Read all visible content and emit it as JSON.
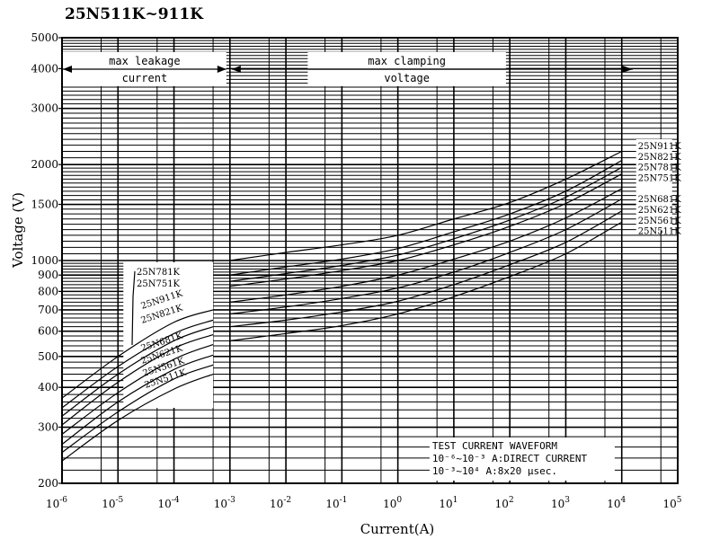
{
  "chart_data": {
    "type": "line",
    "title": "25N511K~911K",
    "xlabel": "Current(A)",
    "ylabel": "Voltage (V)",
    "x_scale": "log",
    "y_scale": "log",
    "xlim": [
      1e-06,
      100000.0
    ],
    "ylim": [
      200,
      5000
    ],
    "x_ticks": [
      {
        "base": "10",
        "exp": "-6"
      },
      {
        "base": "10",
        "exp": "-5"
      },
      {
        "base": "10",
        "exp": "-4"
      },
      {
        "base": "10",
        "exp": "-3"
      },
      {
        "base": "10",
        "exp": "-2"
      },
      {
        "base": "10",
        "exp": "-1"
      },
      {
        "base": "10",
        "exp": "0"
      },
      {
        "base": "10",
        "exp": "1"
      },
      {
        "base": "10",
        "exp": "2"
      },
      {
        "base": "10",
        "exp": "3"
      },
      {
        "base": "10",
        "exp": "4"
      },
      {
        "base": "10",
        "exp": "5"
      }
    ],
    "y_ticks": [
      200,
      300,
      400,
      500,
      600,
      700,
      800,
      900,
      1000,
      1500,
      2000,
      3000,
      4000,
      5000
    ],
    "grid": true,
    "annotations": {
      "leakage": [
        "max leakage",
        "current"
      ],
      "clamping": [
        "max clamping",
        "voltage"
      ]
    },
    "legend_box": {
      "lines": [
        "TEST CURRENT WAVEFORM",
        "10⁻⁶~10⁻³ A:DIRECT CURRENT",
        "10⁻³~10⁴ A:8x20 μsec."
      ],
      "position": "bottom-right"
    },
    "leakage_labels_order": [
      "25N781K",
      "25N751K",
      "25N911K",
      "25N821K",
      "25N681K",
      "25N621K",
      "25N561K",
      "25N511K"
    ],
    "clamping_labels_order": [
      "25N911K",
      "25N821K",
      "25N781K",
      "25N751K",
      "25N681K",
      "25N621K",
      "25N561K",
      "25N511K"
    ],
    "series": [
      {
        "name": "25N911K",
        "leakage": {
          "x": [
            1e-06,
            1e-05,
            0.0001,
            0.0005
          ],
          "y": [
            370,
            500,
            640,
            700
          ]
        },
        "clamping": {
          "x": [
            0.001,
            0.01,
            0.1,
            1,
            10,
            100,
            1000,
            10000
          ],
          "y": [
            1000,
            1060,
            1120,
            1200,
            1350,
            1520,
            1800,
            2200
          ]
        }
      },
      {
        "name": "25N821K",
        "leakage": {
          "x": [
            1e-06,
            1e-05,
            0.0001,
            0.0005
          ],
          "y": [
            345,
            465,
            590,
            650
          ]
        },
        "clamping": {
          "x": [
            0.001,
            0.01,
            0.1,
            1,
            10,
            100,
            1000,
            10000
          ],
          "y": [
            900,
            955,
            1010,
            1090,
            1230,
            1400,
            1650,
            2060
          ]
        }
      },
      {
        "name": "25N781K",
        "leakage": {
          "x": [
            1e-06,
            1e-05,
            0.0001,
            0.0005
          ],
          "y": [
            325,
            440,
            560,
            620
          ]
        },
        "clamping": {
          "x": [
            0.001,
            0.01,
            0.1,
            1,
            10,
            100,
            1000,
            10000
          ],
          "y": [
            860,
            910,
            965,
            1040,
            1170,
            1340,
            1580,
            1960
          ]
        }
      },
      {
        "name": "25N751K",
        "leakage": {
          "x": [
            1e-06,
            1e-05,
            0.0001,
            0.0005
          ],
          "y": [
            305,
            415,
            530,
            585
          ]
        },
        "clamping": {
          "x": [
            0.001,
            0.01,
            0.1,
            1,
            10,
            100,
            1000,
            10000
          ],
          "y": [
            830,
            875,
            930,
            1000,
            1120,
            1280,
            1510,
            1870
          ]
        }
      },
      {
        "name": "25N681K",
        "leakage": {
          "x": [
            1e-06,
            1e-05,
            0.0001,
            0.0005
          ],
          "y": [
            285,
            385,
            490,
            545
          ]
        },
        "clamping": {
          "x": [
            0.001,
            0.01,
            0.1,
            1,
            10,
            100,
            1000,
            10000
          ],
          "y": [
            740,
            780,
            830,
            900,
            1010,
            1150,
            1360,
            1680
          ]
        }
      },
      {
        "name": "25N621K",
        "leakage": {
          "x": [
            1e-06,
            1e-05,
            0.0001,
            0.0005
          ],
          "y": [
            265,
            360,
            455,
            505
          ]
        },
        "clamping": {
          "x": [
            0.001,
            0.01,
            0.1,
            1,
            10,
            100,
            1000,
            10000
          ],
          "y": [
            680,
            715,
            760,
            820,
            920,
            1060,
            1250,
            1560
          ]
        }
      },
      {
        "name": "25N561K",
        "leakage": {
          "x": [
            1e-06,
            1e-05,
            0.0001,
            0.0005
          ],
          "y": [
            250,
            335,
            425,
            470
          ]
        },
        "clamping": {
          "x": [
            0.001,
            0.01,
            0.1,
            1,
            10,
            100,
            1000,
            10000
          ],
          "y": [
            620,
            650,
            690,
            745,
            840,
            970,
            1140,
            1430
          ]
        }
      },
      {
        "name": "25N511K",
        "leakage": {
          "x": [
            1e-06,
            1e-05,
            0.0001,
            0.0005
          ],
          "y": [
            235,
            315,
            395,
            440
          ]
        },
        "clamping": {
          "x": [
            0.001,
            0.01,
            0.1,
            1,
            10,
            100,
            1000,
            10000
          ],
          "y": [
            560,
            590,
            625,
            680,
            770,
            890,
            1050,
            1320
          ]
        }
      }
    ]
  }
}
